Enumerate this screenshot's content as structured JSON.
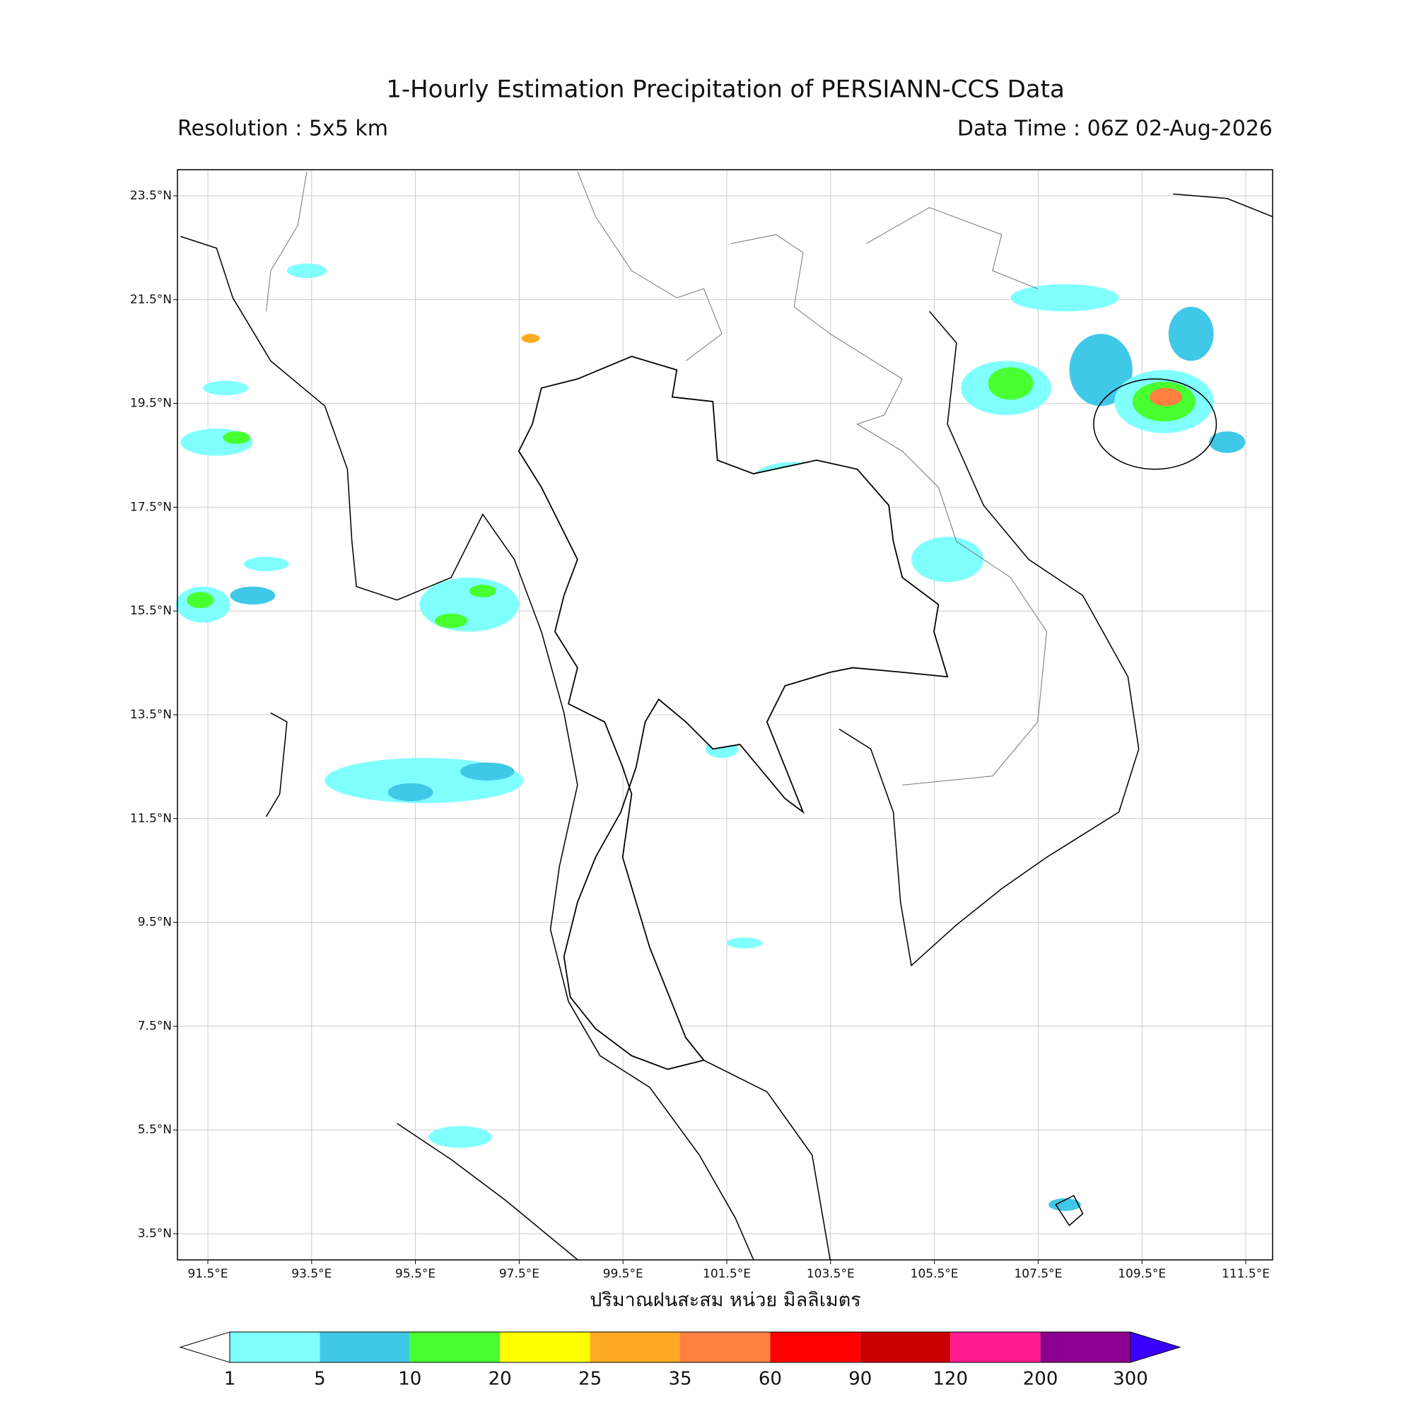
{
  "header": {
    "title": "1-Hourly Estimation Precipitation of PERSIANN-CCS Data",
    "resolution": "Resolution : 5x5 km",
    "data_time": "Data Time : 06Z 02-Aug-2026"
  },
  "map": {
    "xlabel": "ปริมาณฝนสะสม หน่วย มิลลิเมตร",
    "lon_ticks": [
      {
        "value": 91.5,
        "label": "91.5°E"
      },
      {
        "value": 93.5,
        "label": "93.5°E"
      },
      {
        "value": 95.5,
        "label": "95.5°E"
      },
      {
        "value": 97.5,
        "label": "97.5°E"
      },
      {
        "value": 99.5,
        "label": "99.5°E"
      },
      {
        "value": 101.5,
        "label": "101.5°E"
      },
      {
        "value": 103.5,
        "label": "103.5°E"
      },
      {
        "value": 105.5,
        "label": "105.5°E"
      },
      {
        "value": 107.5,
        "label": "107.5°E"
      },
      {
        "value": 109.5,
        "label": "109.5°E"
      },
      {
        "value": 111.5,
        "label": "111.5°E"
      }
    ],
    "lat_ticks": [
      {
        "value": 23.5,
        "label": "23.5°N"
      },
      {
        "value": 21.5,
        "label": "21.5°N"
      },
      {
        "value": 19.5,
        "label": "19.5°N"
      },
      {
        "value": 17.5,
        "label": "17.5°N"
      },
      {
        "value": 15.5,
        "label": "15.5°N"
      },
      {
        "value": 13.5,
        "label": "13.5°N"
      },
      {
        "value": 11.5,
        "label": "11.5°N"
      },
      {
        "value": 9.5,
        "label": "9.5°N"
      },
      {
        "value": 7.5,
        "label": "7.5°N"
      },
      {
        "value": 5.5,
        "label": "5.5°N"
      },
      {
        "value": 3.5,
        "label": "3.5°N"
      }
    ]
  },
  "colorbar": {
    "levels": [
      1,
      5,
      10,
      20,
      25,
      35,
      60,
      90,
      120,
      200,
      300
    ],
    "colors": [
      "#80ffff",
      "#40c8e8",
      "#48ff30",
      "#ffff00",
      "#ffaa22",
      "#ff8040",
      "#ff0000",
      "#cc0000",
      "#ff1a90",
      "#8c0090"
    ],
    "over_color": "#3a00ff",
    "under_color": "#ffffff"
  }
}
